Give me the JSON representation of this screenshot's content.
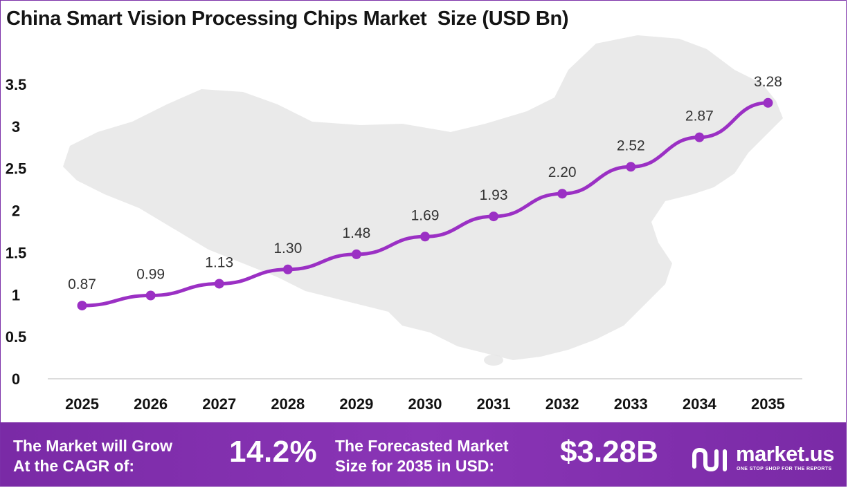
{
  "title": "China Smart Vision Processing Chips Market  Size (USD Bn)",
  "chart_data": {
    "type": "line",
    "title": "China Smart Vision Processing Chips Market  Size (USD Bn)",
    "xlabel": "",
    "ylabel": "",
    "categories": [
      "2025",
      "2026",
      "2027",
      "2028",
      "2029",
      "2030",
      "2031",
      "2032",
      "2033",
      "2034",
      "2035"
    ],
    "series": [
      {
        "values": [
          0.87,
          0.99,
          1.13,
          1.3,
          1.48,
          1.69,
          1.93,
          2.2,
          2.52,
          2.87,
          3.28
        ]
      }
    ],
    "data_labels": [
      "0.87",
      "0.99",
      "1.13",
      "1.30",
      "1.48",
      "1.69",
      "1.93",
      "2.20",
      "2.52",
      "2.87",
      "3.28"
    ],
    "yticks": [
      "0",
      "0.5",
      "1",
      "1.5",
      "2",
      "2.5",
      "3",
      "3.5"
    ],
    "ylim": [
      0,
      3.5
    ],
    "grid": false,
    "line_color": "#9b30c4",
    "background_map": "China silhouette (light gray)"
  },
  "footer": {
    "cagr_label_line1": "The Market will Grow",
    "cagr_label_line2": "At the CAGR of:",
    "cagr_value": "14.2%",
    "forecast_label_line1": "The Forecasted Market",
    "forecast_label_line2": "Size for 2035 in USD:",
    "forecast_value": "$3.28B",
    "brand_name": "market.us",
    "brand_tagline": "ONE STOP SHOP FOR THE REPORTS",
    "background_color": "#8433b0"
  }
}
